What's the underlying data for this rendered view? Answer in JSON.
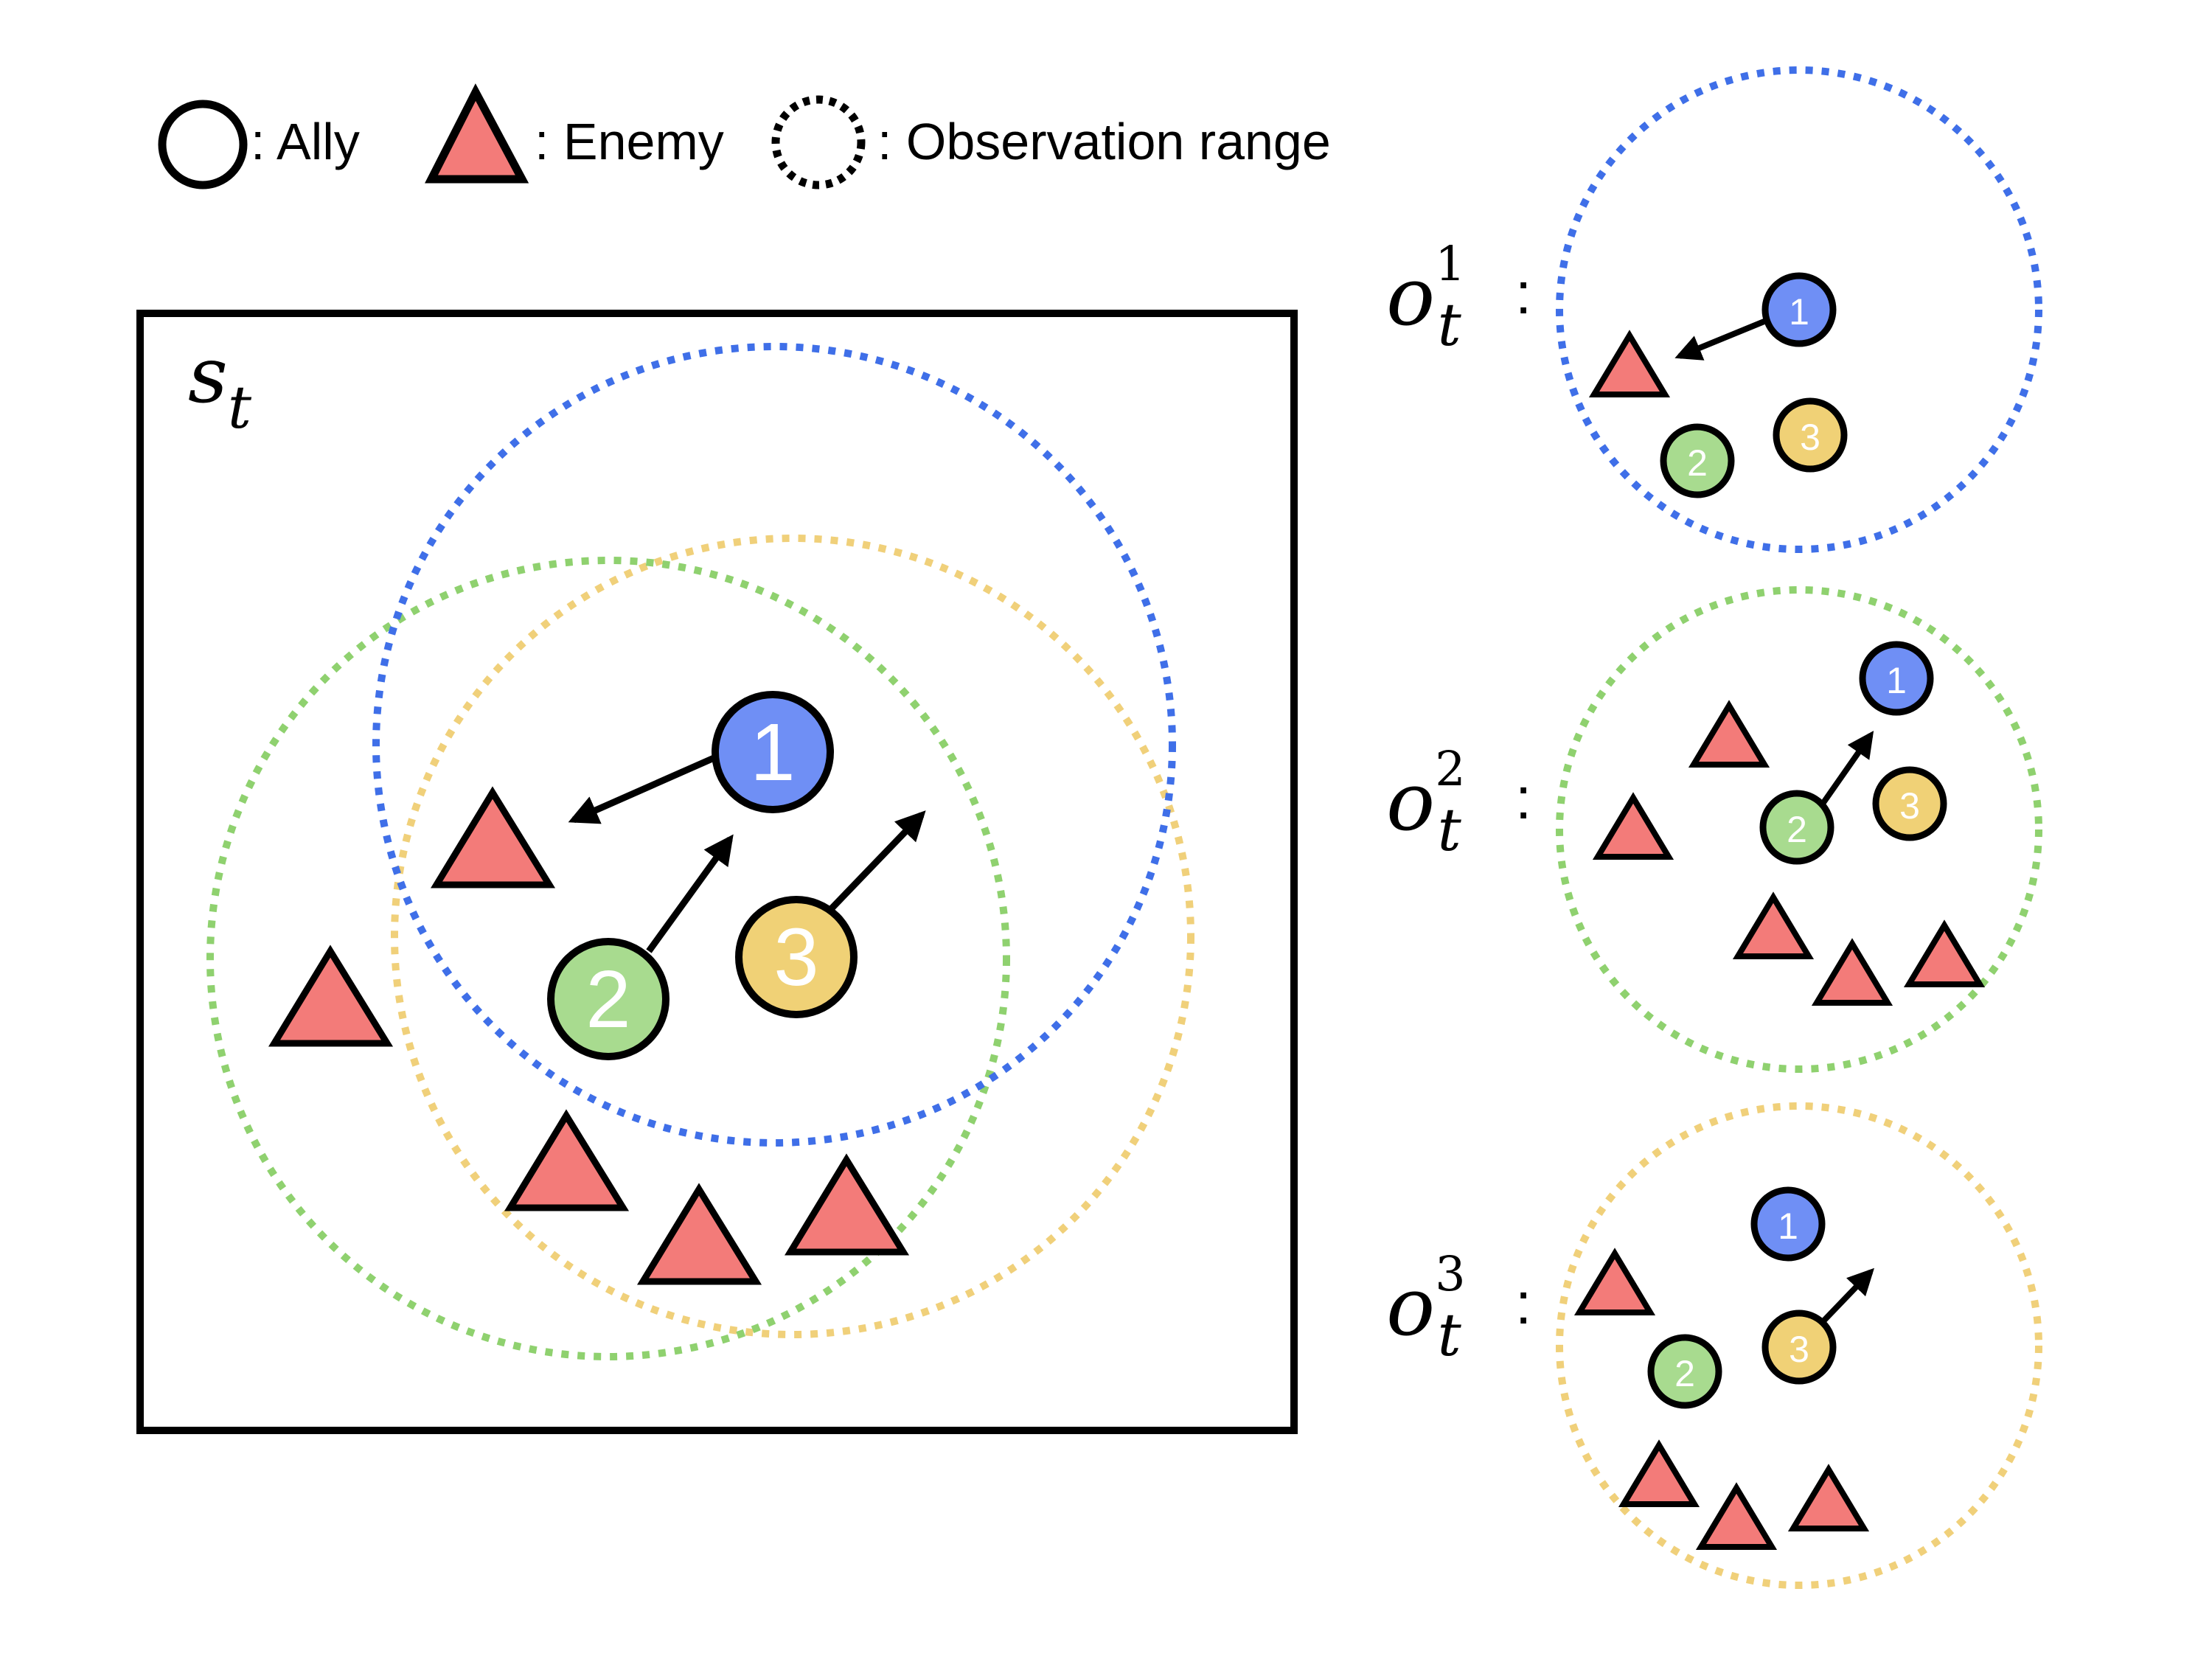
{
  "legend": {
    "ally_label": ": Ally",
    "enemy_label": ": Enemy",
    "range_label": ": Observation range"
  },
  "state": {
    "symbol": "s",
    "subscript": "t"
  },
  "observations": [
    {
      "symbol": "o",
      "subscript": "t",
      "superscript": "1",
      "colon": ":"
    },
    {
      "symbol": "o",
      "subscript": "t",
      "superscript": "2",
      "colon": ":"
    },
    {
      "symbol": "o",
      "subscript": "t",
      "superscript": "3",
      "colon": ":"
    }
  ],
  "agents": [
    {
      "id": "1",
      "color": "#6f8ff5"
    },
    {
      "id": "2",
      "color": "#a8db8f"
    },
    {
      "id": "3",
      "color": "#f0d176"
    }
  ],
  "colors": {
    "enemy_fill": "#f37b79",
    "range_1": "#3f6fe8",
    "range_2": "#8fd16f",
    "range_3": "#f0d07a",
    "outline": "#000000"
  }
}
